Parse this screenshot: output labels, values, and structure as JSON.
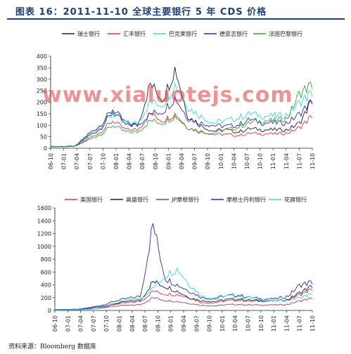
{
  "header": {
    "title": "图表 16：2011-11-10 全球主要银行 5 年 CDS 价格"
  },
  "watermark": "www.xialuotejs.com",
  "source": "资料来源：Bloomberg 数据库",
  "chart_data": [
    {
      "type": "line",
      "ylim": [
        0,
        400
      ],
      "yticks": [
        0,
        50,
        100,
        150,
        200,
        250,
        300,
        350,
        400
      ],
      "xticks": [
        "06-10",
        "07-01",
        "07-04",
        "07-07",
        "07-10",
        "08-01",
        "08-04",
        "08-07",
        "08-10",
        "09-01",
        "09-04",
        "09-07",
        "09-10",
        "10-01",
        "10-04",
        "10-07",
        "10-10",
        "11-01",
        "11-04",
        "11-07",
        "11-10"
      ],
      "grid": false,
      "legend": "top",
      "series": [
        {
          "name": "瑞士银行",
          "color": "#1a1f4a",
          "values": [
            8,
            8,
            10,
            60,
            100,
            170,
            110,
            100,
            280,
            210,
            350,
            140,
            100,
            75,
            80,
            70,
            85,
            80,
            80,
            80,
            110,
            210
          ]
        },
        {
          "name": "汇丰银行",
          "color": "#e2383f",
          "values": [
            6,
            6,
            8,
            40,
            70,
            120,
            80,
            80,
            150,
            120,
            150,
            90,
            75,
            60,
            60,
            55,
            65,
            62,
            62,
            65,
            90,
            140
          ]
        },
        {
          "name": "巴克莱银行",
          "color": "#3fd8e0",
          "values": [
            8,
            8,
            10,
            55,
            90,
            150,
            110,
            110,
            200,
            190,
            280,
            180,
            140,
            110,
            120,
            130,
            150,
            140,
            140,
            145,
            200,
            240
          ]
        },
        {
          "name": "德意志银行",
          "color": "#2a2fb0",
          "values": [
            7,
            7,
            9,
            50,
            85,
            160,
            100,
            100,
            150,
            160,
            220,
            130,
            110,
            100,
            95,
            100,
            125,
            110,
            110,
            110,
            150,
            205
          ]
        },
        {
          "name": "法国巴黎银行",
          "color": "#3ea33e",
          "values": [
            6,
            6,
            8,
            35,
            60,
            100,
            70,
            70,
            120,
            110,
            140,
            90,
            70,
            65,
            80,
            90,
            110,
            120,
            120,
            130,
            240,
            275
          ]
        }
      ]
    },
    {
      "type": "line",
      "ylim": [
        0,
        1600
      ],
      "yticks": [
        0,
        200,
        400,
        600,
        800,
        1000,
        1200,
        1400,
        1600
      ],
      "xticks": [
        "06-10",
        "07-01",
        "07-04",
        "07-07",
        "07-10",
        "08-01",
        "08-04",
        "08-07",
        "08-10",
        "09-01",
        "09-04",
        "09-07",
        "09-10",
        "10-01",
        "10-04",
        "10-07",
        "10-10",
        "11-01",
        "11-04",
        "11-07",
        "11-10"
      ],
      "grid": false,
      "legend": "top",
      "series": [
        {
          "name": "美国银行",
          "color": "#e2383f",
          "values": [
            10,
            10,
            12,
            20,
            50,
            100,
            120,
            140,
            300,
            260,
            250,
            200,
            120,
            120,
            150,
            160,
            140,
            150,
            150,
            160,
            250,
            330
          ]
        },
        {
          "name": "高盛银行",
          "color": "#1a1f4a",
          "values": [
            15,
            15,
            18,
            40,
            70,
            110,
            140,
            160,
            450,
            380,
            300,
            200,
            150,
            140,
            170,
            180,
            160,
            150,
            150,
            170,
            280,
            380
          ]
        },
        {
          "name": "JP摩根银行",
          "color": "#a03c6e",
          "values": [
            10,
            10,
            12,
            25,
            45,
            70,
            80,
            90,
            200,
            160,
            140,
            110,
            80,
            70,
            90,
            95,
            85,
            85,
            85,
            95,
            150,
            190
          ]
        },
        {
          "name": "摩根士丹利银行",
          "color": "#2a2fb0",
          "values": [
            15,
            15,
            20,
            50,
            90,
            150,
            190,
            220,
            1350,
            500,
            400,
            300,
            200,
            180,
            230,
            240,
            200,
            180,
            180,
            220,
            400,
            440
          ]
        },
        {
          "name": "花旗银行",
          "color": "#3fd8e0",
          "values": [
            10,
            10,
            12,
            20,
            60,
            120,
            160,
            180,
            350,
            550,
            650,
            400,
            220,
            200,
            230,
            220,
            200,
            160,
            150,
            160,
            200,
            260
          ]
        }
      ]
    }
  ]
}
